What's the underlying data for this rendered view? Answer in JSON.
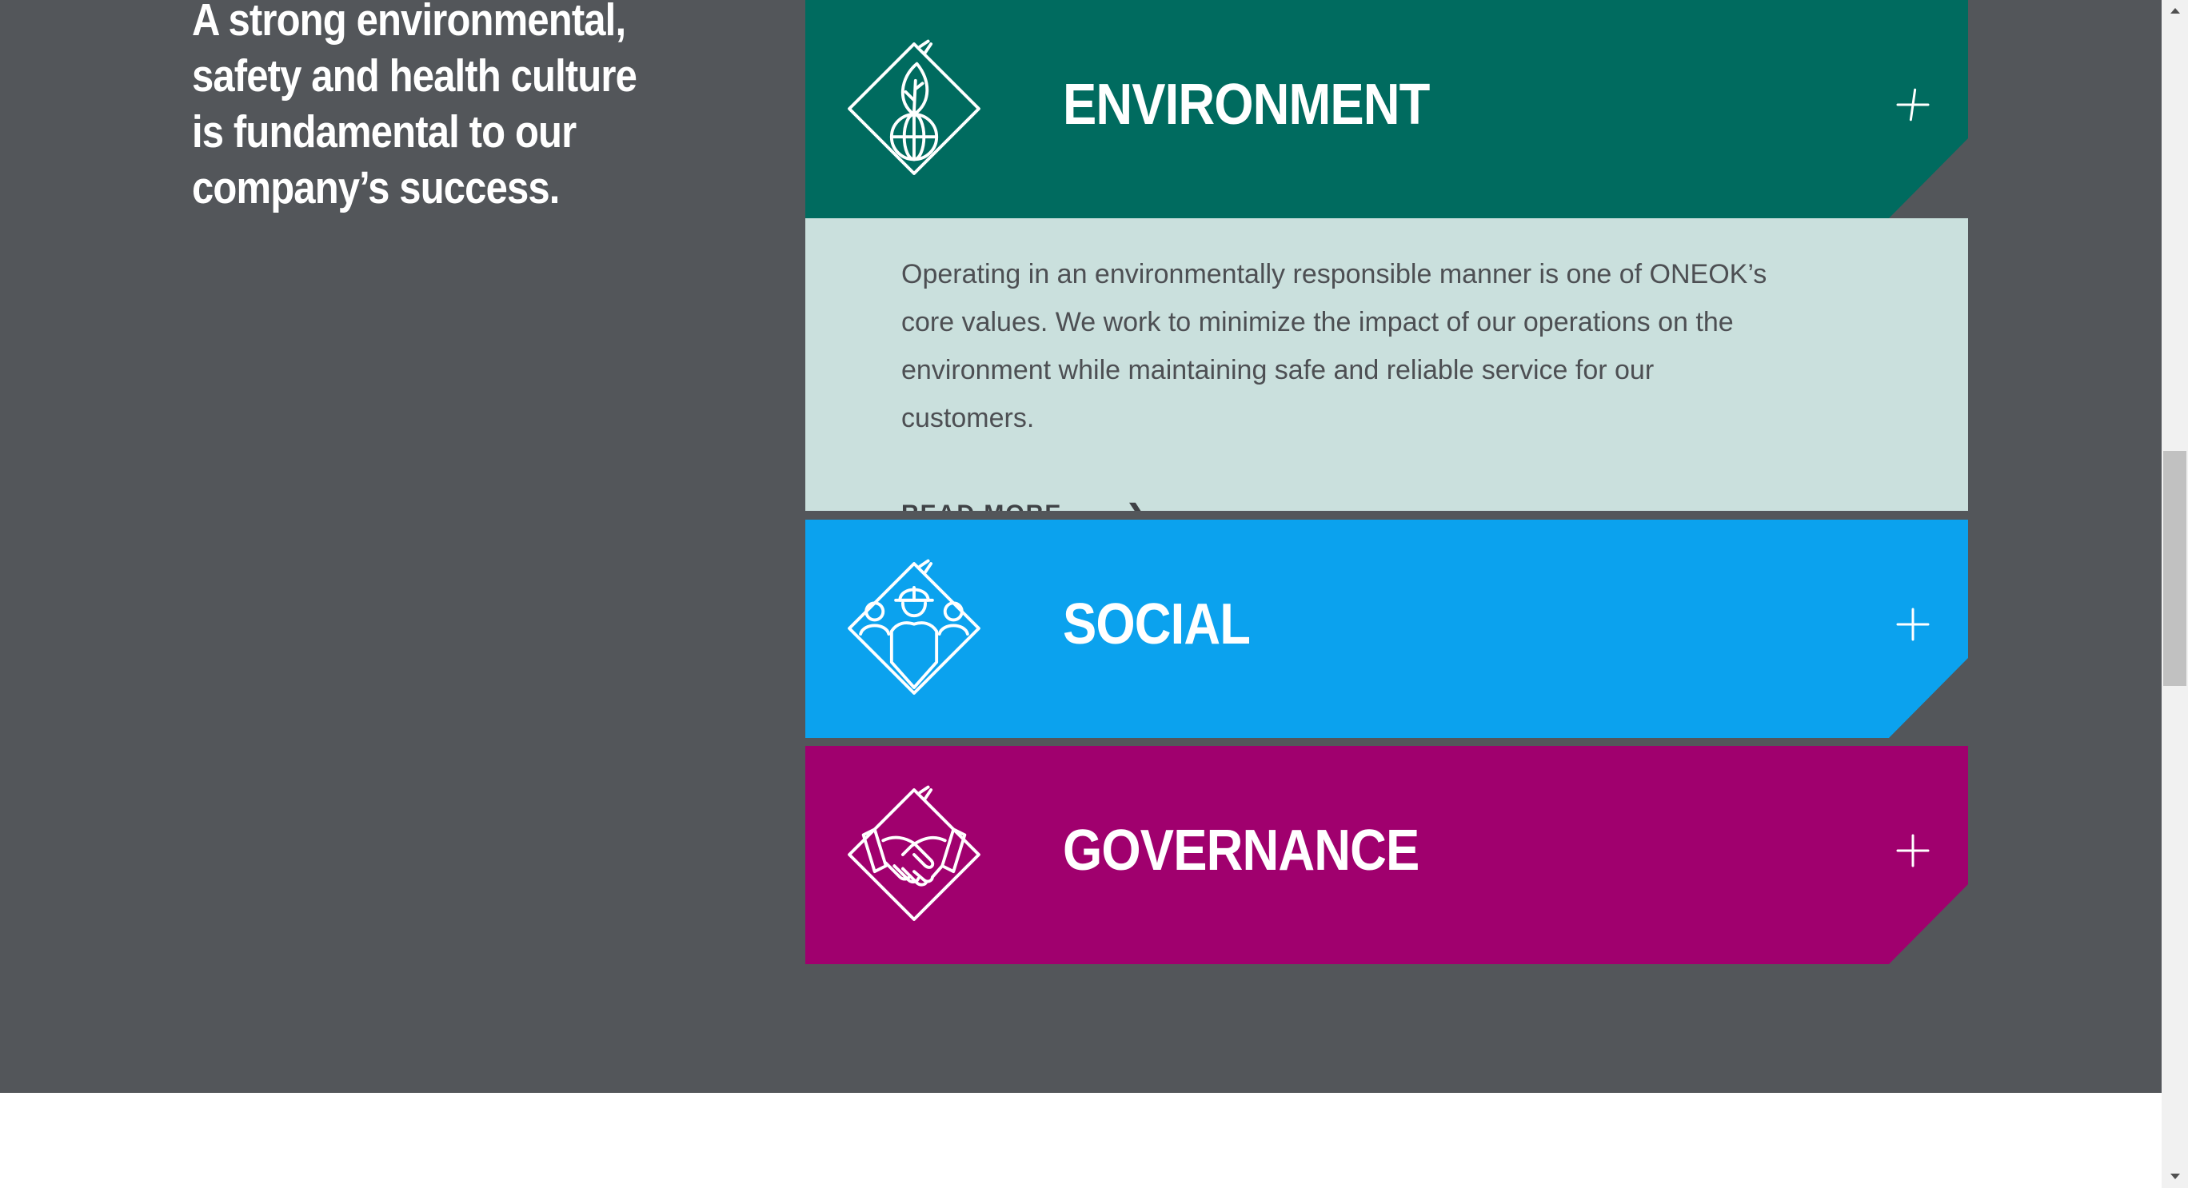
{
  "headline": "A strong environmental, safety and health culture is fundamental to our company’s success.",
  "panels": [
    {
      "title": "ENVIRONMENT",
      "color": "#006b5f",
      "icon": "leaf-globe-icon",
      "expanded": true,
      "body": "Operating in an environmentally responsible manner is one of ONEOK’s core values. We work to minimize the impact of our operations on the environment while maintaining safe and reliable service for our customers.",
      "read_more": "READ MORE",
      "body_bg": "#cae0dd"
    },
    {
      "title": "SOCIAL",
      "color": "#0ba2ee",
      "icon": "people-hardhat-icon",
      "expanded": false
    },
    {
      "title": "GOVERNANCE",
      "color": "#a0006e",
      "icon": "handshake-icon",
      "expanded": false
    }
  ],
  "colors": {
    "section_bg": "#53565a",
    "text_light": "#ffffff"
  },
  "scrollbar": {
    "position": "middle"
  }
}
